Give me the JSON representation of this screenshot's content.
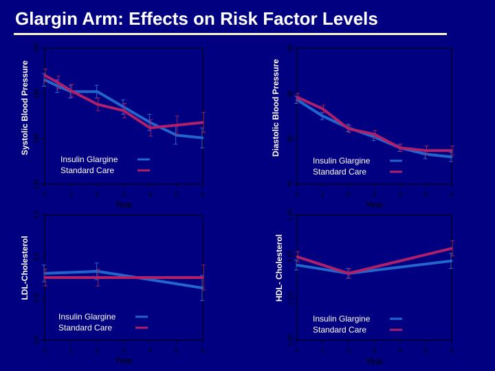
{
  "title": "Glargin Arm: Effects on Risk Factor Levels",
  "colors": {
    "background": "#000080",
    "plot_area": "#000080",
    "title_rule": "#ffffcc",
    "glargine": "#2266cc",
    "standard": "#b0206a",
    "error_bar_glargine": "#3366cc",
    "error_bar_standard": "#a02060"
  },
  "chart_data": [
    {
      "type": "line",
      "ylabel": "Systolic Blood Pressure",
      "xlabel": "Year",
      "x": [
        0,
        0.5,
        1,
        2,
        3,
        4,
        5,
        6
      ],
      "xticks": [
        0,
        1,
        2,
        3,
        4,
        5,
        6
      ],
      "yticks": [
        135,
        140,
        145,
        150
      ],
      "ylim": [
        135,
        150
      ],
      "xlim": [
        0,
        6
      ],
      "legend": [
        "Insulin Glargine",
        "Standard Care"
      ],
      "legend_position": "bottom-center",
      "series": [
        {
          "name": "Insulin Glargine",
          "values": [
            146.5,
            145.8,
            145.2,
            145.2,
            143.5,
            141.8,
            140.4,
            140.1
          ],
          "errors": [
            0.7,
            0.7,
            0.7,
            0.7,
            0.8,
            0.9,
            1.0,
            1.1
          ]
        },
        {
          "name": "Standard Care",
          "values": [
            147.0,
            146.2,
            145.3,
            143.8,
            143.1,
            141.2,
            141.5,
            141.8
          ],
          "errors": [
            0.7,
            0.7,
            0.7,
            0.7,
            0.8,
            0.9,
            1.0,
            1.1
          ]
        }
      ]
    },
    {
      "type": "line",
      "ylabel": "Diastolic Blood Pressure",
      "xlabel": "Year",
      "x": [
        0,
        1,
        2,
        3,
        4,
        5,
        6
      ],
      "xticks": [
        0,
        1,
        2,
        3,
        4,
        5,
        6
      ],
      "yticks": [
        75,
        80,
        85,
        90
      ],
      "ylim": [
        75,
        90
      ],
      "xlim": [
        0,
        6
      ],
      "legend": [
        "Insulin Glargine",
        "Standard Care"
      ],
      "legend_position": "bottom-right",
      "series": [
        {
          "name": "Insulin Glargine",
          "values": [
            84.3,
            82.5,
            81.2,
            80.2,
            79.0,
            78.3,
            78.0
          ],
          "errors": [
            0.4,
            0.4,
            0.4,
            0.4,
            0.4,
            0.5,
            0.5
          ]
        },
        {
          "name": "Standard Care",
          "values": [
            84.6,
            83.3,
            81.1,
            80.5,
            79.0,
            78.7,
            78.7
          ],
          "errors": [
            0.4,
            0.4,
            0.4,
            0.4,
            0.4,
            0.5,
            0.5
          ]
        }
      ]
    },
    {
      "type": "line",
      "ylabel": "LDL-Cholesterol",
      "xlabel": "Year",
      "x": [
        0,
        2,
        6
      ],
      "xticks": [
        0,
        1,
        2,
        3,
        4,
        5,
        6
      ],
      "yticks": [
        2.6,
        2.8,
        3.0,
        3.2
      ],
      "ylim": [
        2.6,
        3.2
      ],
      "xlim": [
        0,
        6
      ],
      "legend": [
        "Insulin Glargine",
        "Standard Care"
      ],
      "legend_position": "bottom-center",
      "series": [
        {
          "name": "Insulin Glargine",
          "values": [
            2.92,
            2.93,
            2.85
          ],
          "errors": [
            0.04,
            0.04,
            0.06
          ]
        },
        {
          "name": "Standard Care",
          "values": [
            2.9,
            2.9,
            2.9
          ],
          "errors": [
            0.04,
            0.04,
            0.06
          ]
        }
      ]
    },
    {
      "type": "line",
      "ylabel": "HDL- Cholesterol",
      "xlabel": "Year",
      "x": [
        0,
        2,
        6
      ],
      "xticks": [
        0,
        1,
        2,
        3,
        4,
        5,
        6
      ],
      "yticks": [
        1.05,
        1.1,
        1.15,
        1.2
      ],
      "ylim": [
        1.05,
        1.2
      ],
      "xlim": [
        0,
        6
      ],
      "legend": [
        "Insulin Glargine",
        "Standard Care"
      ],
      "legend_position": "bottom-right",
      "series": [
        {
          "name": "Insulin Glargine",
          "values": [
            1.14,
            1.13,
            1.145
          ],
          "errors": [
            0.006,
            0.006,
            0.009
          ]
        },
        {
          "name": "Standard Care",
          "values": [
            1.15,
            1.13,
            1.16
          ],
          "errors": [
            0.006,
            0.006,
            0.009
          ]
        }
      ]
    }
  ]
}
